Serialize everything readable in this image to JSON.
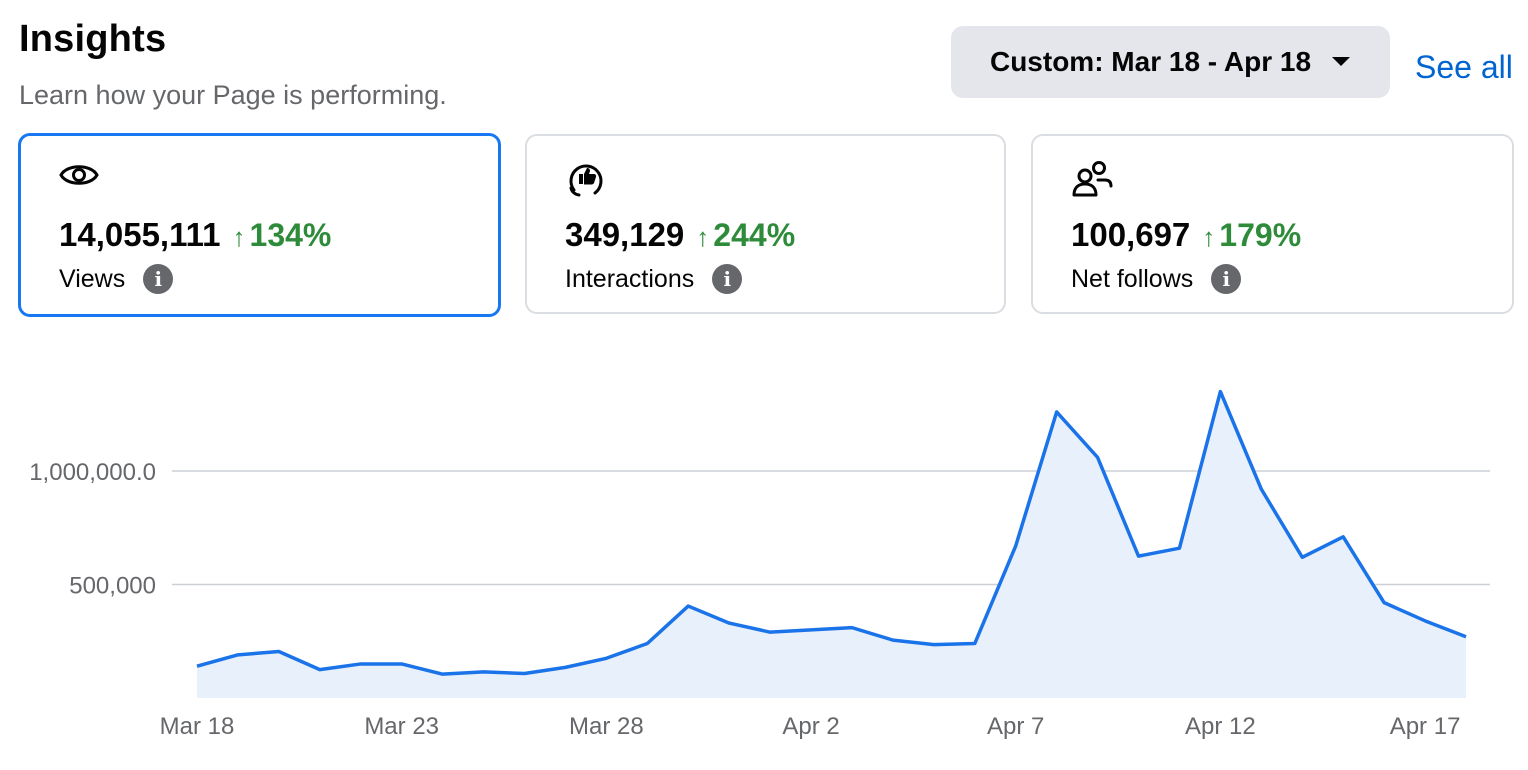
{
  "header": {
    "title": "Insights",
    "subtitle": "Learn how your Page is performing.",
    "date_range_label": "Custom: Mar 18 - Apr 18",
    "see_all_label": "See all"
  },
  "cards": [
    {
      "icon": "eye-icon",
      "value": "14,055,111",
      "change_arrow": "↑",
      "change": "134%",
      "label": "Views",
      "selected": true
    },
    {
      "icon": "reactions-icon",
      "value": "349,129",
      "change_arrow": "↑",
      "change": "244%",
      "label": "Interactions",
      "selected": false
    },
    {
      "icon": "people-icon",
      "value": "100,697",
      "change_arrow": "↑",
      "change": "179%",
      "label": "Net follows",
      "selected": false
    }
  ],
  "colors": {
    "accent": "#1877f2",
    "positive_change": "#2e8b3a",
    "line": "#1a73e8",
    "area": "#e8f0fc",
    "gridline": "#ccd0d5"
  },
  "chart_data": {
    "type": "area",
    "title": "",
    "xlabel": "",
    "ylabel": "",
    "ylim": [
      0,
      1500000
    ],
    "yticks": [
      {
        "value": 500000,
        "label": "500,000"
      },
      {
        "value": 1000000,
        "label": "1,000,000.0"
      }
    ],
    "xticks": [
      {
        "index": 0,
        "label": "Mar 18"
      },
      {
        "index": 5,
        "label": "Mar 23"
      },
      {
        "index": 10,
        "label": "Mar 28"
      },
      {
        "index": 15,
        "label": "Apr 2"
      },
      {
        "index": 20,
        "label": "Apr 7"
      },
      {
        "index": 25,
        "label": "Apr 12"
      },
      {
        "index": 30,
        "label": "Apr 17"
      }
    ],
    "x": [
      "Mar 18",
      "Mar 19",
      "Mar 20",
      "Mar 21",
      "Mar 22",
      "Mar 23",
      "Mar 24",
      "Mar 25",
      "Mar 26",
      "Mar 27",
      "Mar 28",
      "Mar 29",
      "Mar 30",
      "Mar 31",
      "Apr 1",
      "Apr 2",
      "Apr 3",
      "Apr 4",
      "Apr 5",
      "Apr 6",
      "Apr 7",
      "Apr 8",
      "Apr 9",
      "Apr 10",
      "Apr 11",
      "Apr 12",
      "Apr 13",
      "Apr 14",
      "Apr 15",
      "Apr 16",
      "Apr 17",
      "Apr 18"
    ],
    "values": [
      140000,
      190000,
      205000,
      125000,
      150000,
      150000,
      105000,
      115000,
      108000,
      135000,
      175000,
      240000,
      405000,
      330000,
      290000,
      300000,
      310000,
      255000,
      235000,
      240000,
      670000,
      1260000,
      1060000,
      625000,
      660000,
      1350000,
      920000,
      620000,
      710000,
      420000,
      340000,
      270000
    ],
    "grid": true,
    "legend": "none"
  }
}
